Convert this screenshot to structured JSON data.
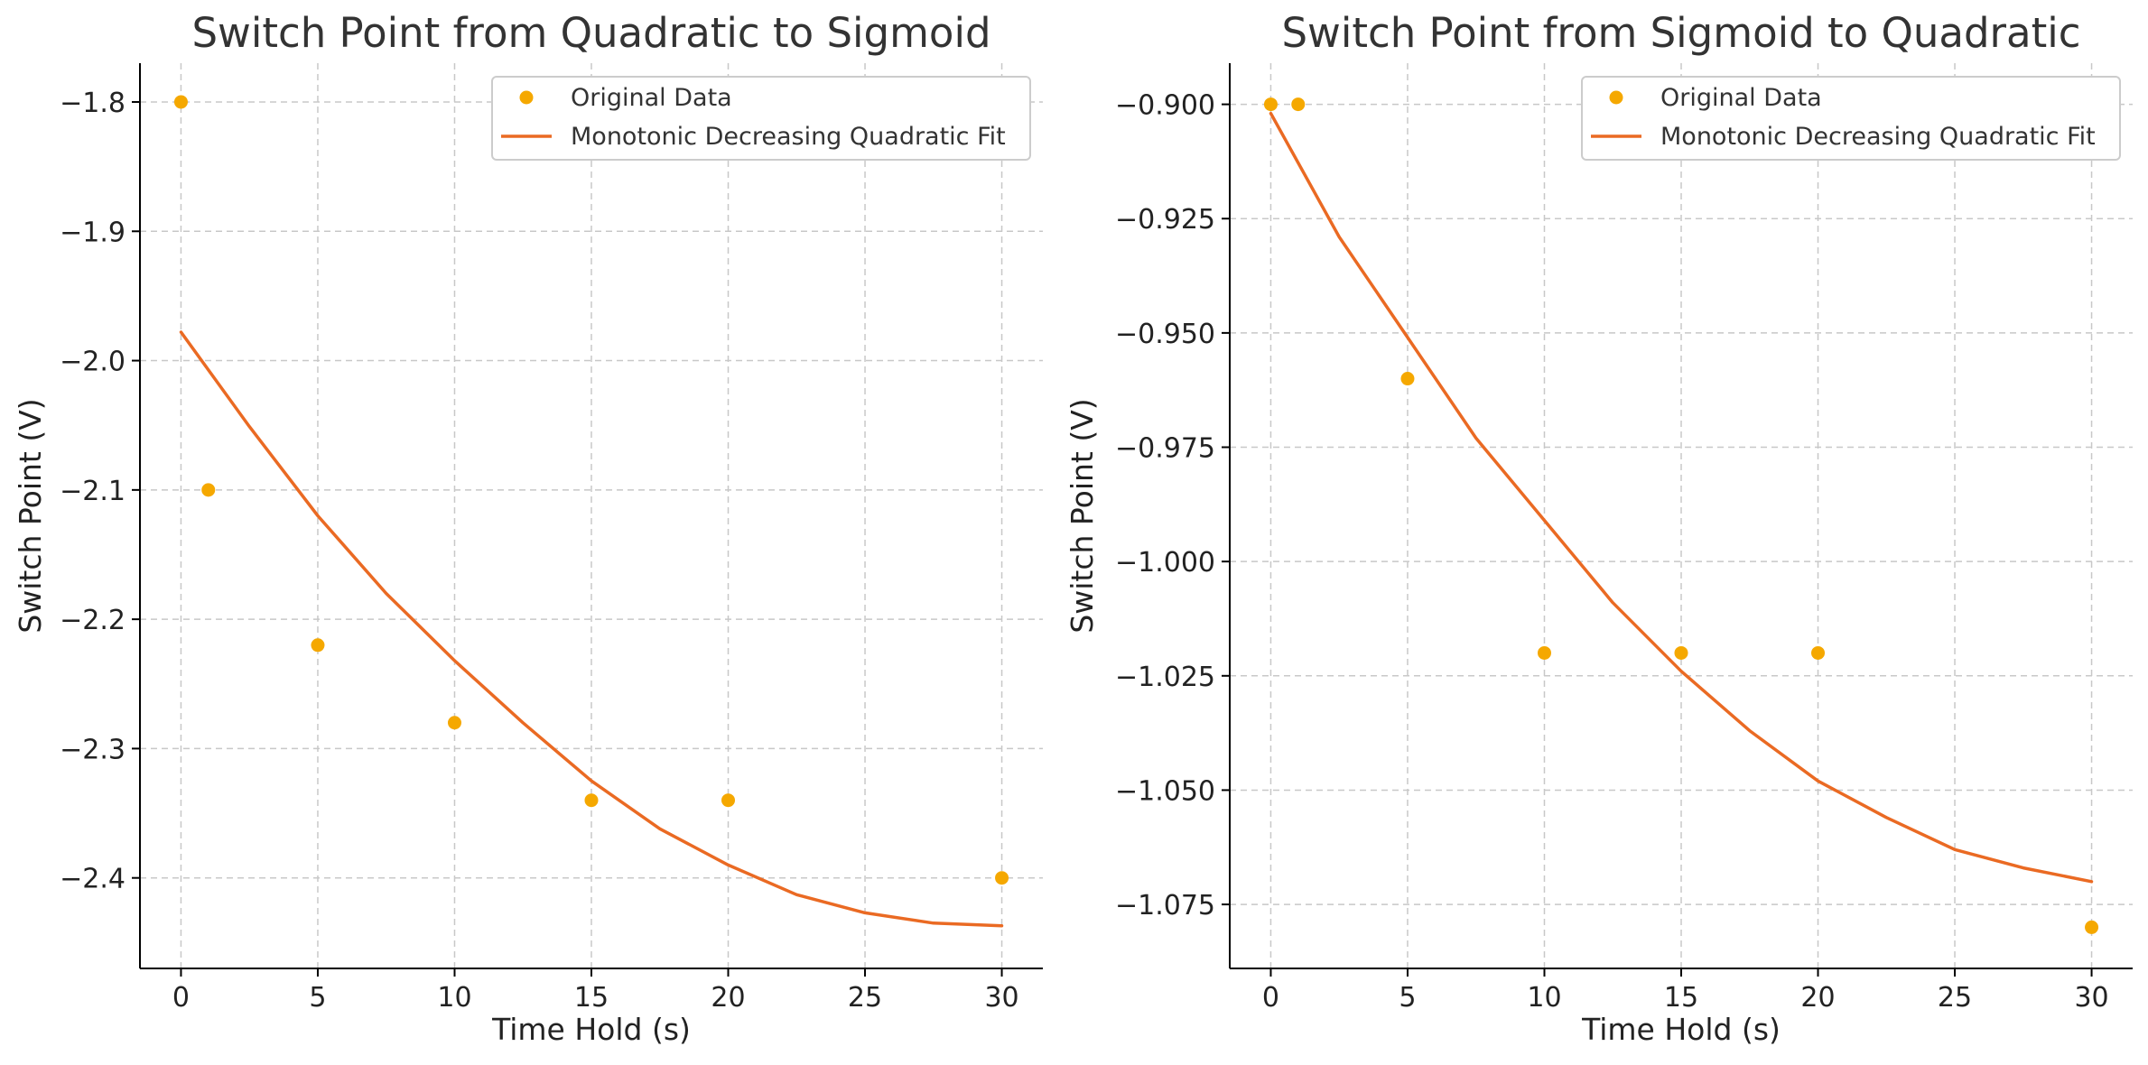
{
  "colors": {
    "data_points": "#F5A800",
    "fit_line": "#EA6A23"
  },
  "chart_data": [
    {
      "type": "scatter",
      "title": "Switch Point from Quadratic to Sigmoid",
      "xlabel": "Time Hold (s)",
      "ylabel": "Switch Point (V)",
      "xlim": [
        -1.5,
        31.5
      ],
      "ylim": [
        -2.47,
        -1.77
      ],
      "xticks": [
        0,
        5,
        10,
        15,
        20,
        25,
        30
      ],
      "xtick_labels": [
        "0",
        "5",
        "10",
        "15",
        "20",
        "25",
        "30"
      ],
      "yticks": [
        -1.8,
        -1.9,
        -2.0,
        -2.1,
        -2.2,
        -2.3,
        -2.4
      ],
      "ytick_labels": [
        "−1.8",
        "−1.9",
        "−2.0",
        "−2.1",
        "−2.2",
        "−2.3",
        "−2.4"
      ],
      "grid": true,
      "legend_position": "top-right",
      "series": [
        {
          "name": "Original Data",
          "kind": "points",
          "x": [
            0,
            1,
            5,
            10,
            15,
            20,
            30
          ],
          "y": [
            -1.8,
            -2.1,
            -2.22,
            -2.28,
            -2.34,
            -2.34,
            -2.4
          ]
        },
        {
          "name": "Monotonic Decreasing Quadratic Fit",
          "kind": "line",
          "x": [
            0,
            2.5,
            5,
            7.5,
            10,
            12.5,
            15,
            17.5,
            20,
            22.5,
            25,
            27.5,
            30
          ],
          "y": [
            -1.978,
            -2.051,
            -2.12,
            -2.18,
            -2.232,
            -2.28,
            -2.325,
            -2.362,
            -2.39,
            -2.413,
            -2.427,
            -2.435,
            -2.437
          ]
        }
      ]
    },
    {
      "type": "scatter",
      "title": "Switch Point from Sigmoid to Quadratic",
      "xlabel": "Time Hold (s)",
      "ylabel": "Switch Point (V)",
      "xlim": [
        -1.5,
        31.5
      ],
      "ylim": [
        -1.089,
        -0.891
      ],
      "xticks": [
        0,
        5,
        10,
        15,
        20,
        25,
        30
      ],
      "xtick_labels": [
        "0",
        "5",
        "10",
        "15",
        "20",
        "25",
        "30"
      ],
      "yticks": [
        -0.9,
        -0.925,
        -0.95,
        -0.975,
        -1.0,
        -1.025,
        -1.05,
        -1.075
      ],
      "ytick_labels": [
        "−0.900",
        "−0.925",
        "−0.950",
        "−0.975",
        "−1.000",
        "−1.025",
        "−1.050",
        "−1.075"
      ],
      "grid": true,
      "legend_position": "top-right",
      "series": [
        {
          "name": "Original Data",
          "kind": "points",
          "x": [
            0,
            1,
            5,
            10,
            15,
            20,
            30
          ],
          "y": [
            -0.9,
            -0.9,
            -0.96,
            -1.02,
            -1.02,
            -1.02,
            -1.08
          ]
        },
        {
          "name": "Monotonic Decreasing Quadratic Fit",
          "kind": "line",
          "x": [
            0,
            2.5,
            5,
            7.5,
            10,
            12.5,
            15,
            17.5,
            20,
            22.5,
            25,
            27.5,
            30
          ],
          "y": [
            -0.902,
            -0.929,
            -0.951,
            -0.973,
            -0.991,
            -1.009,
            -1.024,
            -1.037,
            -1.048,
            -1.056,
            -1.063,
            -1.067,
            -1.07
          ]
        }
      ]
    }
  ]
}
